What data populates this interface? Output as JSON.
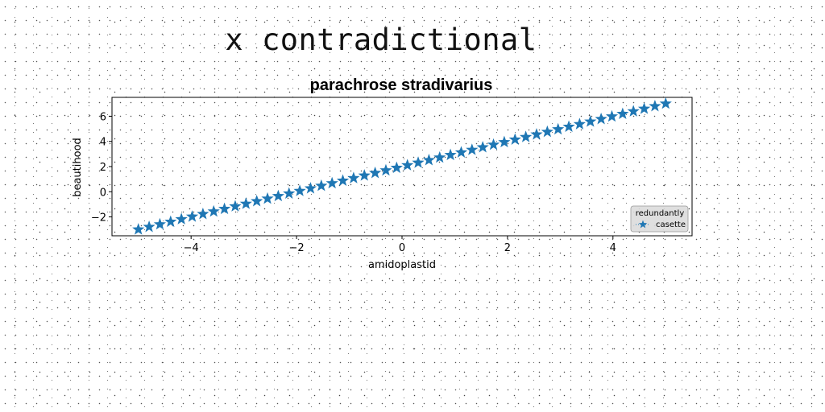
{
  "figure": {
    "suptitle": "x contradictional"
  },
  "chart_data": {
    "type": "scatter",
    "title": "parachrose stradivarius",
    "xlabel": "amidoplastid",
    "ylabel": "beautihood",
    "xlim": [
      -5.5,
      5.5
    ],
    "ylim": [
      -3.5,
      7.5
    ],
    "xticks": [
      -4,
      -2,
      0,
      2,
      4
    ],
    "yticks": [
      -2,
      0,
      2,
      4,
      6
    ],
    "xtick_labels": [
      "−4",
      "−2",
      "0",
      "2",
      "4"
    ],
    "ytick_labels": [
      "−2",
      "0",
      "2",
      "4",
      "6"
    ],
    "grid": false,
    "marker": "star",
    "color": "#1f77b4",
    "legend": {
      "title": "redundantly",
      "placement": "lower right",
      "entries": [
        "casette"
      ]
    },
    "series": [
      {
        "name": "casette",
        "x_start": -5,
        "x_end": 5,
        "count": 50,
        "slope": 1.0,
        "intercept": 2.0
      }
    ]
  }
}
